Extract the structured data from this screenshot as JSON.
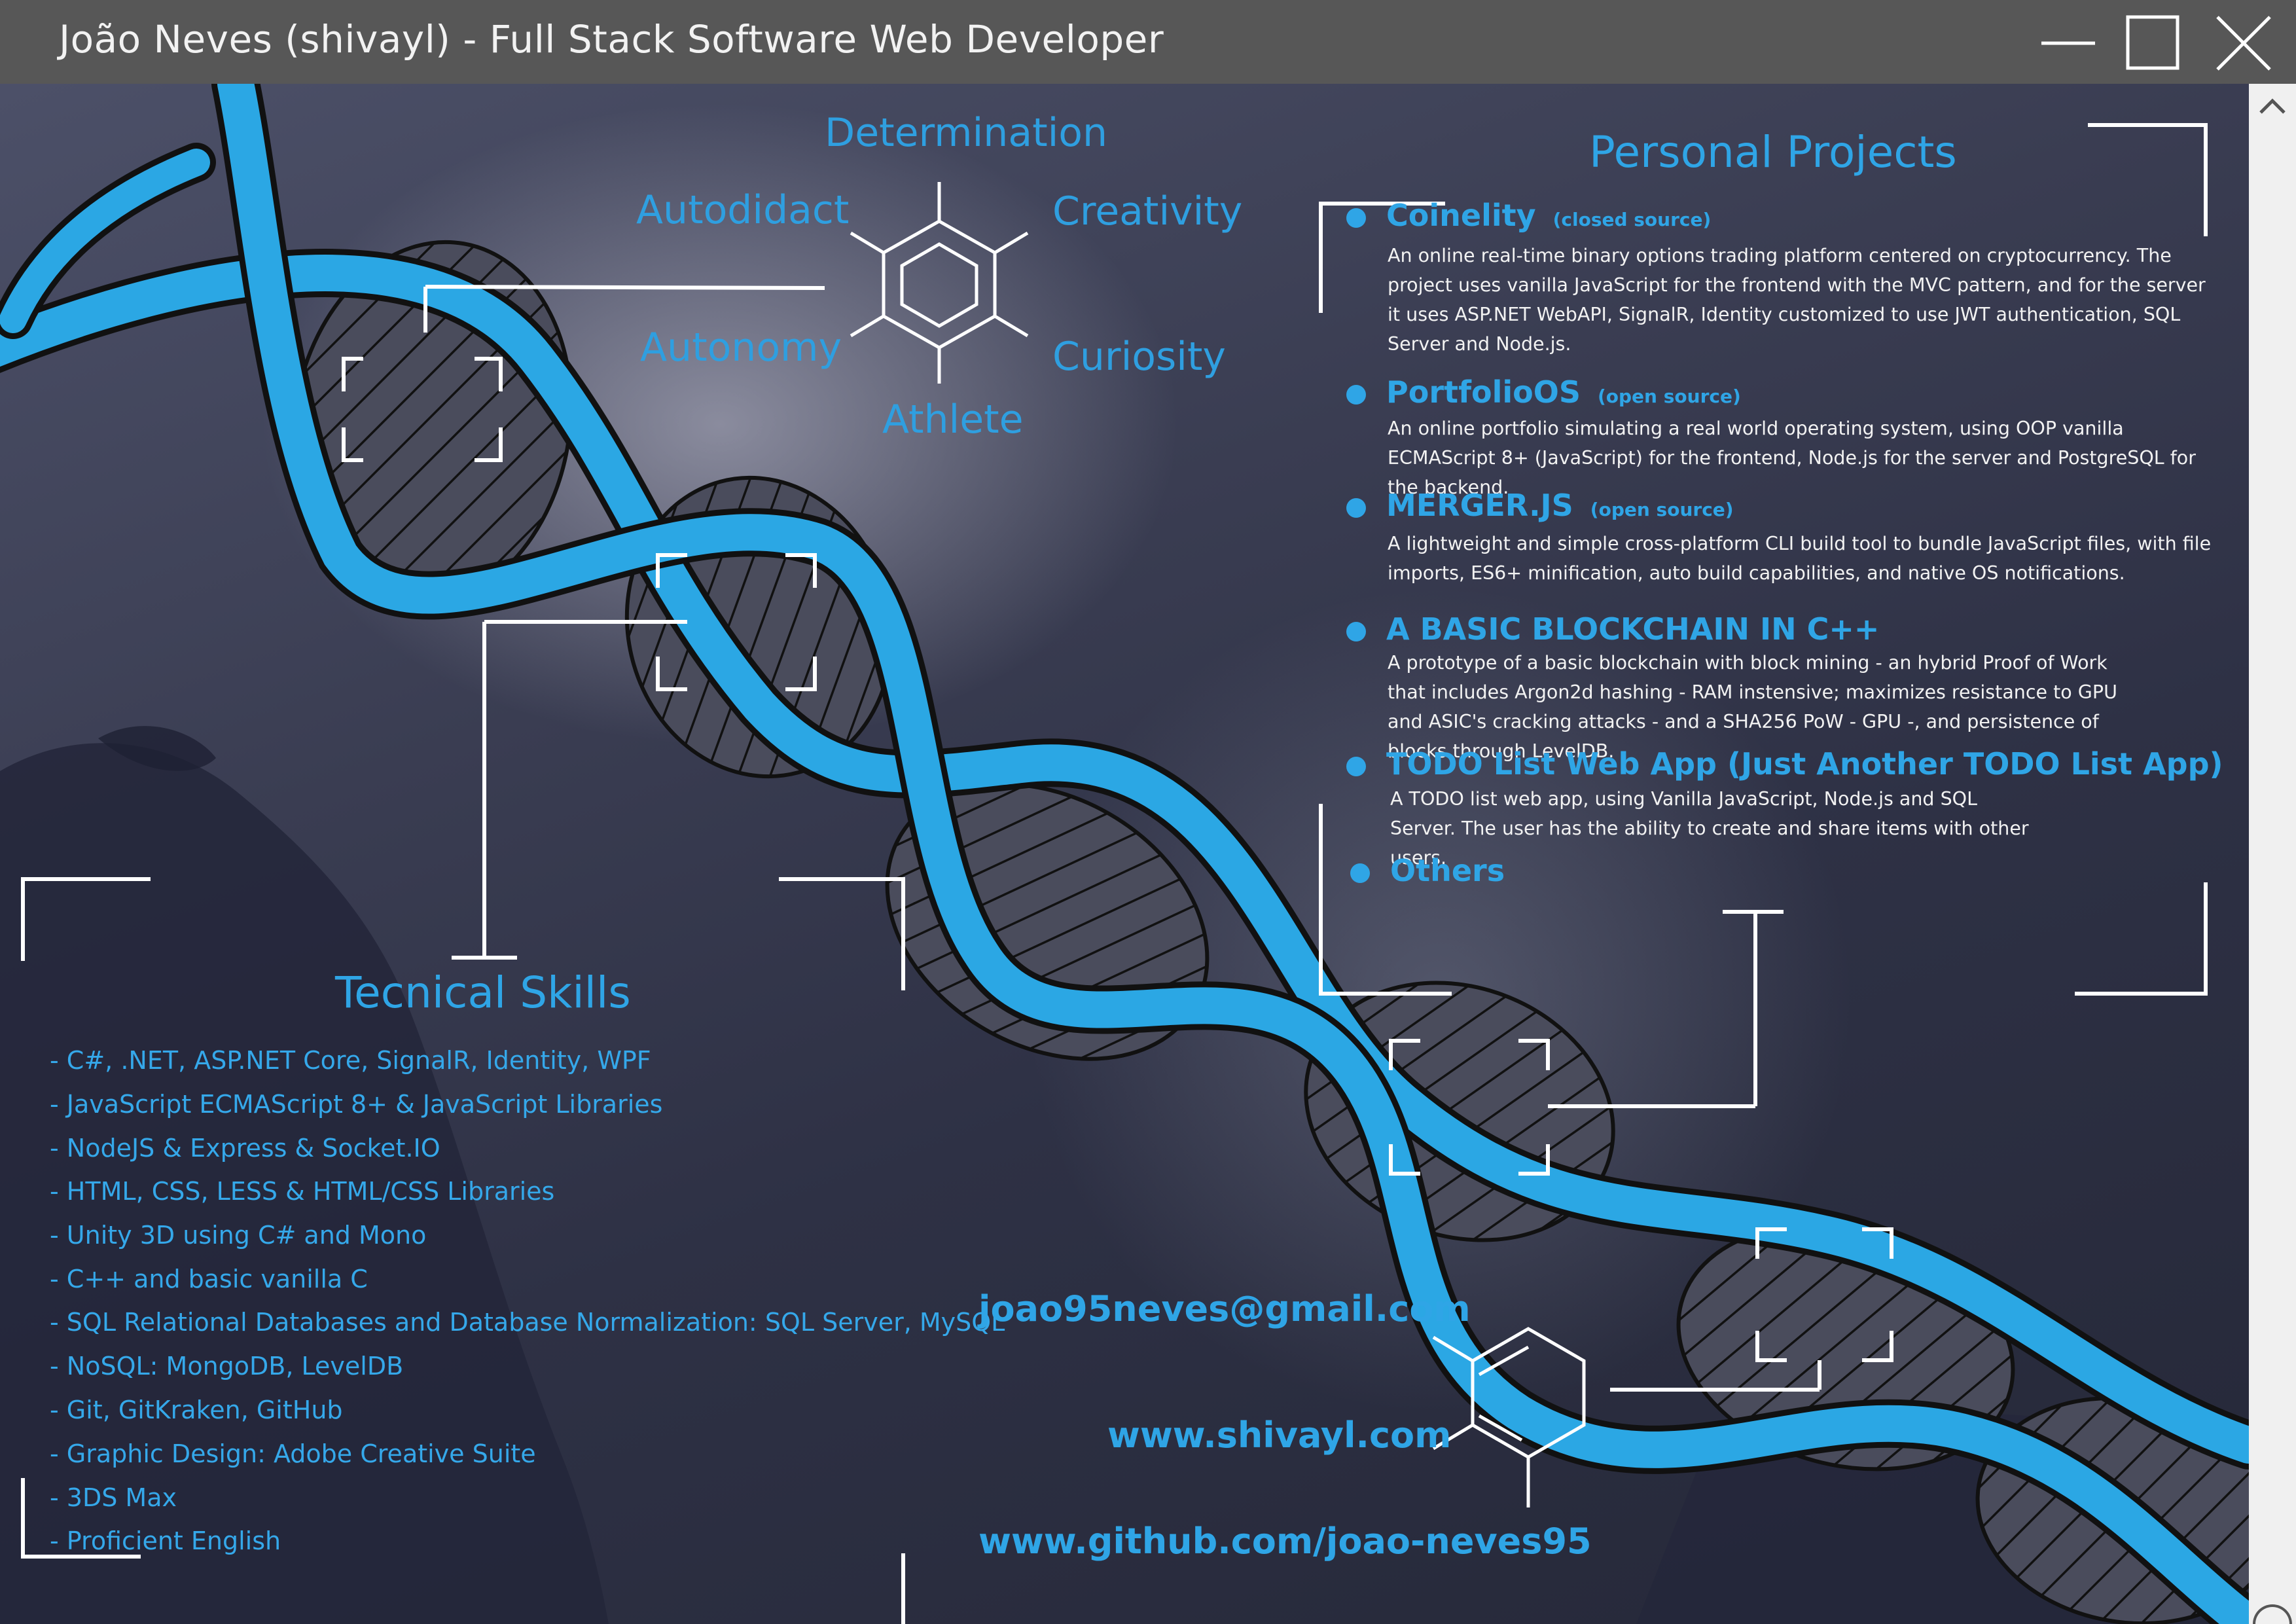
{
  "window": {
    "title": "João Neves (shivayl) - Full Stack Software Web Developer",
    "controls": [
      "minimize-icon",
      "maximize-icon",
      "close-icon",
      "scroll-up-icon"
    ]
  },
  "traits": [
    "Determination",
    "Autodidact",
    "Creativity",
    "Autonomy",
    "Curiosity",
    "Athlete"
  ],
  "skills": {
    "heading": "Tecnical Skills",
    "items": [
      "- C#, .NET, ASP.NET Core, SignalR, Identity, WPF",
      "- JavaScript ECMAScript 8+ & JavaScript Libraries",
      "- NodeJS & Express & Socket.IO",
      "- HTML, CSS, LESS & HTML/CSS Libraries",
      "- Unity 3D using C# and Mono",
      "- C++ and basic vanilla C",
      "- SQL Relational Databases and Database Normalization: SQL Server, MySQL",
      "- NoSQL: MongoDB, LevelDB",
      "- Git, GitKraken, GitHub",
      "- Graphic Design: Adobe Creative Suite",
      "- 3DS Max",
      "- Proficient English"
    ]
  },
  "projects": {
    "heading": "Personal Projects",
    "items": [
      {
        "name": "Coinelity",
        "tag": "(closed source)",
        "desc": "An online real-time binary options trading platform centered on cryptocurrency. The project uses vanilla JavaScript for the frontend with the MVC pattern, and for the server it uses ASP.NET WebAPI, SignalR, Identity customized to use JWT authentication, SQL Server and Node.js."
      },
      {
        "name": "PortfolioOS",
        "tag": "(open source)",
        "desc": "An online portfolio simulating a real world operating system, using OOP vanilla ECMAScript 8+ (JavaScript) for the frontend, Node.js for the server and PostgreSQL for the backend."
      },
      {
        "name": "MERGER.JS",
        "tag": "(open source)",
        "desc": "A lightweight and simple cross-platform CLI build tool to bundle JavaScript files, with file imports, ES6+ minification, auto build capabilities, and native OS notifications."
      },
      {
        "name": "A BASIC BLOCKCHAIN IN C++",
        "tag": "",
        "desc": "A prototype of a basic blockchain with block mining - an hybrid Proof of Work that includes Argon2d hashing - RAM instensive; maximizes resistance to GPU and ASIC's cracking attacks - and a SHA256 PoW - GPU -, and persistence of blocks through LevelDB."
      },
      {
        "name": "TODO List Web App (Just Another TODO List App)",
        "tag": "",
        "desc": "A TODO list web app, using Vanilla JavaScript, Node.js and SQL Server. The user has the ability to create and share items with other users."
      },
      {
        "name": "Others",
        "tag": "",
        "desc": ""
      }
    ]
  },
  "contact": {
    "email": "joao95neves@gmail.com",
    "website": "www.shivayl.com",
    "github": "www.github.com/joao-neves95"
  },
  "colors": {
    "accent": "#2fa5e6",
    "titlebar": "#575757",
    "helix": "#2ba7e4",
    "background": "#2f3246"
  }
}
